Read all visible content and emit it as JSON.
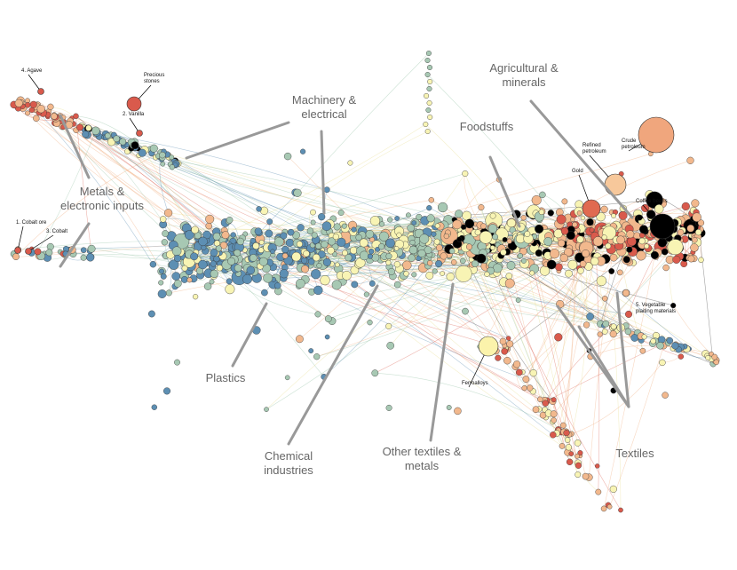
{
  "clusters": [
    {
      "lines": [
        "Metals &",
        "electronic inputs"
      ]
    },
    {
      "lines": [
        "Machinery &",
        "electrical"
      ]
    },
    {
      "lines": [
        "Foodstuffs"
      ]
    },
    {
      "lines": [
        "Agricultural &",
        "minerals"
      ]
    },
    {
      "lines": [
        "Plastics"
      ]
    },
    {
      "lines": [
        "Chemical",
        "industries"
      ]
    },
    {
      "lines": [
        "Other textiles &",
        "metals"
      ]
    },
    {
      "lines": [
        "Textiles"
      ]
    }
  ],
  "products": [
    {
      "lines": [
        "4. Agave"
      ]
    },
    {
      "lines": [
        "Precious",
        "stones"
      ]
    },
    {
      "lines": [
        "2. Vanilla"
      ]
    },
    {
      "lines": [
        "1. Cobalt ore"
      ]
    },
    {
      "lines": [
        "3. Cobalt"
      ]
    },
    {
      "lines": [
        "Crude",
        "petroleum"
      ]
    },
    {
      "lines": [
        "Refined",
        "petroleum"
      ]
    },
    {
      "lines": [
        "Gold"
      ]
    },
    {
      "lines": [
        "Coffee beans"
      ]
    },
    {
      "lines": [
        "5. Vegetable",
        "plaiting materials"
      ]
    },
    {
      "lines": [
        "Ferroalloys"
      ]
    }
  ]
}
